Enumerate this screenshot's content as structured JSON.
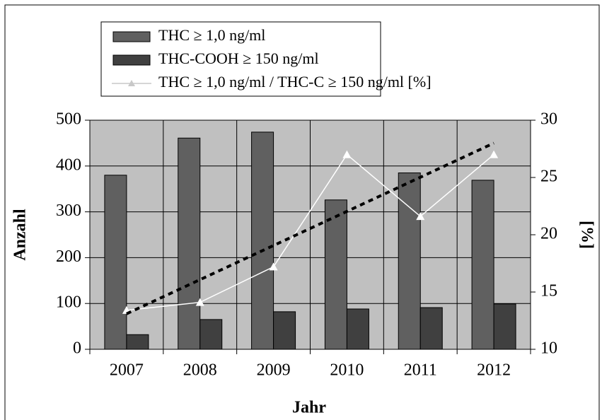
{
  "chart_data": {
    "type": "bar",
    "categories": [
      "2007",
      "2008",
      "2009",
      "2010",
      "2011",
      "2012"
    ],
    "xlabel": "Jahr",
    "ylabel": "Anzahl",
    "y2label": "[%]",
    "series": [
      {
        "name": "THC ≥ 1,0 ng/ml",
        "color": "#606060",
        "values": [
          380,
          461,
          474,
          326,
          385,
          369
        ]
      },
      {
        "name": "THC-COOH ≥ 150 ng/ml",
        "color": "#404040",
        "values": [
          32,
          65,
          82,
          88,
          91,
          99
        ]
      },
      {
        "name": "THC ≥ 1,0 ng/ml / THC-C ≥ 150 ng/ml [%]",
        "color": "#ffffff",
        "type": "line",
        "axis": "y2",
        "values": [
          13.4,
          14.1,
          17.2,
          27.0,
          21.6,
          27.0
        ]
      }
    ],
    "trendline": {
      "color": "#000000",
      "values": [
        13.1,
        28.0
      ]
    },
    "ylim": [
      0,
      500
    ],
    "yticks": [
      0,
      100,
      200,
      300,
      400,
      500
    ],
    "y2lim": [
      10,
      30
    ],
    "y2ticks": [
      10,
      15,
      20,
      25,
      30
    ],
    "plot_background": "#c0c0c0",
    "grid": true
  }
}
